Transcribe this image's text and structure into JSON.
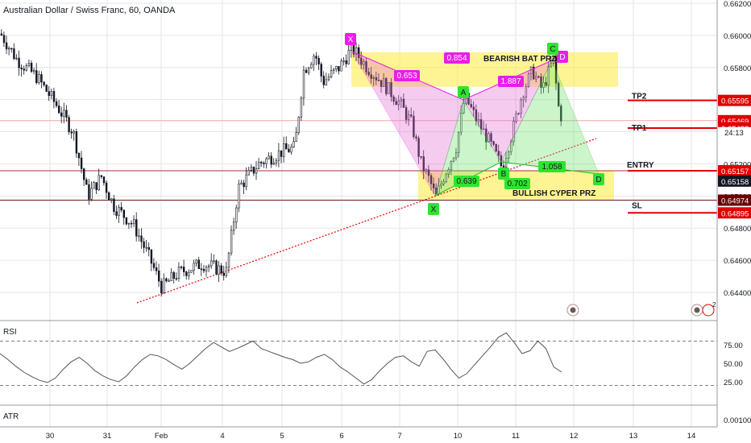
{
  "header": {
    "title": "Australian Dollar / Swiss Franc, 60, OANDA"
  },
  "colors": {
    "up": "#131722",
    "down": "#131722",
    "magenta": "#e91ee8",
    "green": "#2fe32f",
    "yellow": "#ffeb3b",
    "red": "#e00000",
    "dark_red": "#6b0000",
    "grid": "#e6e6e6"
  },
  "chart_data": {
    "type": "candlestick",
    "symbol": "Australian Dollar / Swiss Franc",
    "interval": "60",
    "source": "OANDA",
    "y_ticks": [
      "0.66200",
      "0.66000",
      "0.65800",
      "0.65600",
      "0.65400",
      "0.65200",
      "0.65000",
      "0.64800",
      "0.64600",
      "0.64400"
    ],
    "x_ticks": [
      "30",
      "31",
      "Feb",
      "4",
      "5",
      "6",
      "7",
      "10",
      "11",
      "12",
      "13",
      "14"
    ],
    "ylim": [
      0.6424,
      0.6625
    ],
    "price_path": [
      [
        "30",
        0.6601
      ],
      [
        "30.5",
        0.6581
      ],
      [
        "30.8",
        0.6567
      ],
      [
        "31",
        0.6546
      ],
      [
        "31.3",
        0.6502
      ],
      [
        "31.6",
        0.6492
      ],
      [
        "Feb",
        0.647
      ],
      [
        "Feb.5",
        0.6448
      ],
      [
        "4",
        0.6458
      ],
      [
        "4.3",
        0.6512
      ],
      [
        "4.7",
        0.6538
      ],
      [
        "5",
        0.6531
      ],
      [
        "5.2",
        0.6588
      ],
      [
        "6",
        0.6581
      ],
      [
        "6.2",
        0.6591
      ],
      [
        "6.7",
        0.6567
      ],
      [
        "7",
        0.6531
      ],
      [
        "7.3",
        0.6497
      ],
      [
        "7.5",
        0.6526
      ],
      [
        "7.8",
        0.6567
      ],
      [
        "10",
        0.6543
      ],
      [
        "10.4",
        0.6523
      ],
      [
        "10.7",
        0.6556
      ],
      [
        "11",
        0.6585
      ],
      [
        "11.3",
        0.6557
      ],
      [
        "11.5",
        0.6547
      ]
    ],
    "price_labels": [
      {
        "label": "TP2",
        "value": "0.65595",
        "color": "#e00000"
      },
      {
        "label": "",
        "value": "0.65469",
        "color": "#e00000"
      },
      {
        "label": "TP1",
        "value": "0.65423",
        "color": "#e00000"
      },
      {
        "label": "ENTRY",
        "value": "0.65157",
        "color": "#e00000"
      },
      {
        "label": "",
        "value": "0.65158",
        "color": "#131722"
      },
      {
        "label": "",
        "value": "0.64974",
        "color": "#6b0000"
      },
      {
        "label": "SL",
        "value": "0.64895",
        "color": "#e00000"
      }
    ],
    "countdown": "24:13",
    "harmonic_patterns": [
      {
        "name": "BEARISH BAT PRZ",
        "points": [
          "X",
          "A",
          "B",
          "C",
          "D"
        ],
        "ratios": [
          "0.653",
          "0.854",
          "1.887"
        ]
      },
      {
        "name": "BULLISH CYPER PRZ",
        "points": [
          "X",
          "A",
          "B",
          "C",
          "D"
        ],
        "ratios": [
          "0.639",
          "0.702",
          "1.058"
        ]
      }
    ],
    "trendline": "ascending dotted red support",
    "indicators": [
      {
        "name": "RSI",
        "ticks": [
          "75.00",
          "50.00",
          "25.00"
        ],
        "levels": [
          80,
          20
        ],
        "values": [
          63,
          55,
          46,
          38,
          32,
          27,
          24,
          30,
          42,
          52,
          58,
          50,
          40,
          33,
          28,
          25,
          33,
          45,
          55,
          62,
          60,
          55,
          48,
          42,
          50,
          60,
          70,
          78,
          72,
          66,
          70,
          75,
          80,
          70,
          66,
          62,
          58,
          55,
          50,
          52,
          58,
          62,
          55,
          45,
          38,
          30,
          22,
          28,
          40,
          50,
          58,
          60,
          52,
          46,
          66,
          68,
          56,
          42,
          30,
          36,
          48,
          60,
          72,
          85,
          91,
          78,
          63,
          67,
          80,
          70,
          45,
          38
        ]
      },
      {
        "name": "ATR",
        "ticks": [
          "0.00100"
        ],
        "values": []
      }
    ]
  }
}
